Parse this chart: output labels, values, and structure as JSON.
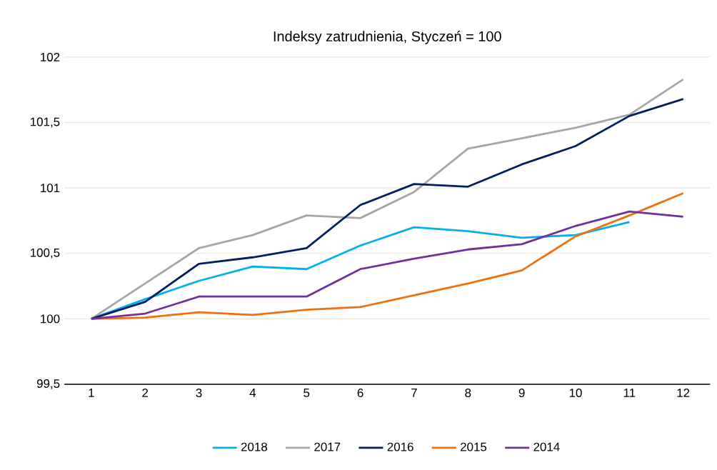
{
  "chart_data": {
    "type": "line",
    "title": "Indeksy zatrudnienia, Styczeń = 100",
    "categories": [
      "1",
      "2",
      "3",
      "4",
      "5",
      "6",
      "7",
      "8",
      "9",
      "10",
      "11",
      "12"
    ],
    "series": [
      {
        "name": "2018",
        "color": "#00b0f0",
        "values": [
          100,
          100.15,
          100.29,
          100.4,
          100.38,
          100.56,
          100.7,
          100.67,
          100.62,
          100.64,
          100.74,
          null
        ]
      },
      {
        "name": "2017",
        "color": "#a6a6a6",
        "values": [
          100,
          100.27,
          100.54,
          100.64,
          100.79,
          100.77,
          100.97,
          101.3,
          101.38,
          101.46,
          101.56,
          101.83
        ]
      },
      {
        "name": "2016",
        "color": "#002060",
        "values": [
          100,
          100.13,
          100.42,
          100.47,
          100.54,
          100.87,
          101.03,
          101.01,
          101.18,
          101.32,
          101.55,
          101.68
        ]
      },
      {
        "name": "2015",
        "color": "#f07010",
        "values": [
          100,
          100.01,
          100.05,
          100.03,
          100.07,
          100.09,
          100.18,
          100.27,
          100.37,
          100.63,
          100.79,
          100.96
        ]
      },
      {
        "name": "2014",
        "color": "#7030a0",
        "values": [
          100,
          100.04,
          100.17,
          100.17,
          100.17,
          100.38,
          100.46,
          100.53,
          100.57,
          100.71,
          100.82,
          100.78
        ]
      }
    ],
    "ylim": [
      99.5,
      102
    ],
    "yticks": [
      {
        "value": 99.5,
        "label": "99,5"
      },
      100,
      {
        "value": 100.5,
        "label": "100,5"
      },
      101,
      {
        "value": 101.5,
        "label": "101,5"
      },
      102
    ],
    "grid": "y",
    "legend": "bottom",
    "marker": "none",
    "line_style": "solid"
  }
}
